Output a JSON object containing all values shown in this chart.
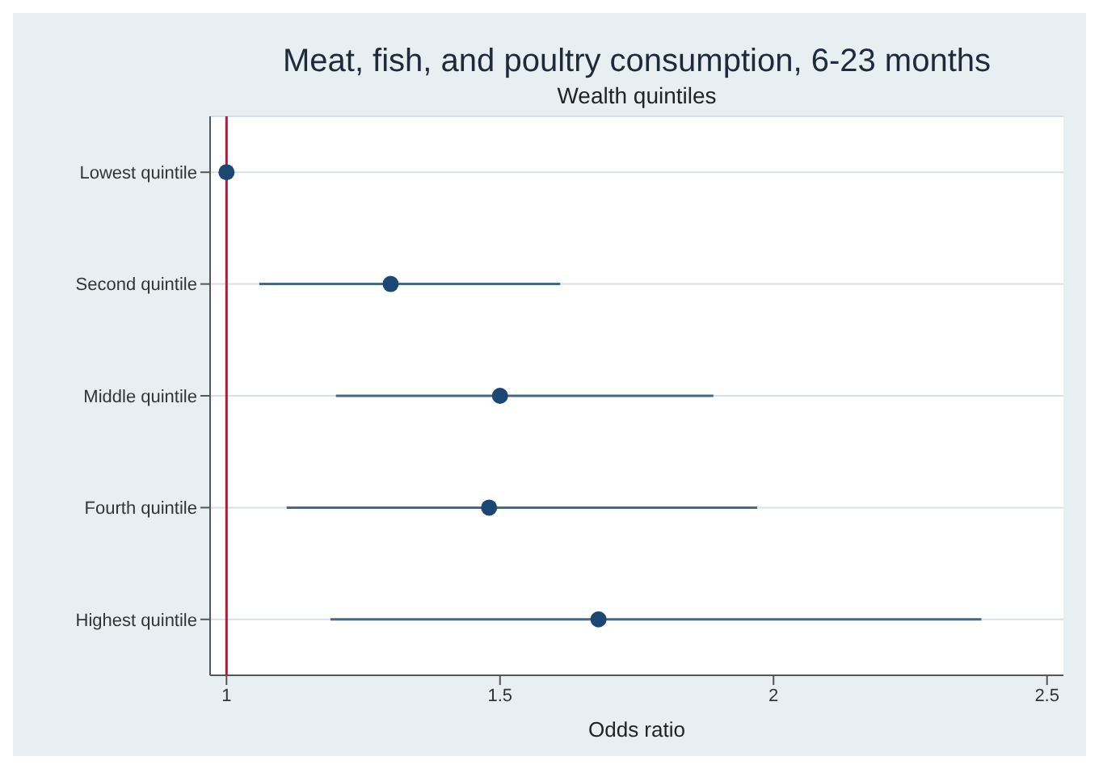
{
  "chart_data": {
    "type": "scatter",
    "title": "Meat, fish, and poultry consumption, 6-23 months",
    "subtitle": "Wealth quintiles",
    "xlabel": "Odds ratio",
    "orientation": "horizontal",
    "categories": [
      "Lowest quintile",
      "Second quintile",
      "Middle quintile",
      "Fourth quintile",
      "Highest quintile"
    ],
    "series": [
      {
        "color": "#1b4872",
        "values": [
          1,
          1.3,
          1.5,
          1.48,
          1.68
        ],
        "errors": [
          null,
          [
            1.06,
            1.61
          ],
          [
            1.2,
            1.89
          ],
          [
            1.11,
            1.97
          ],
          [
            1.19,
            2.38
          ]
        ]
      }
    ],
    "xlim": [
      0.97,
      2.53
    ],
    "xticks": [
      1,
      1.5,
      2,
      2.5
    ],
    "ref_lines": [
      {
        "axis": "x",
        "value": 1,
        "color": "#c8102e"
      }
    ],
    "grid": "y",
    "marker": "circle",
    "legend": false
  }
}
